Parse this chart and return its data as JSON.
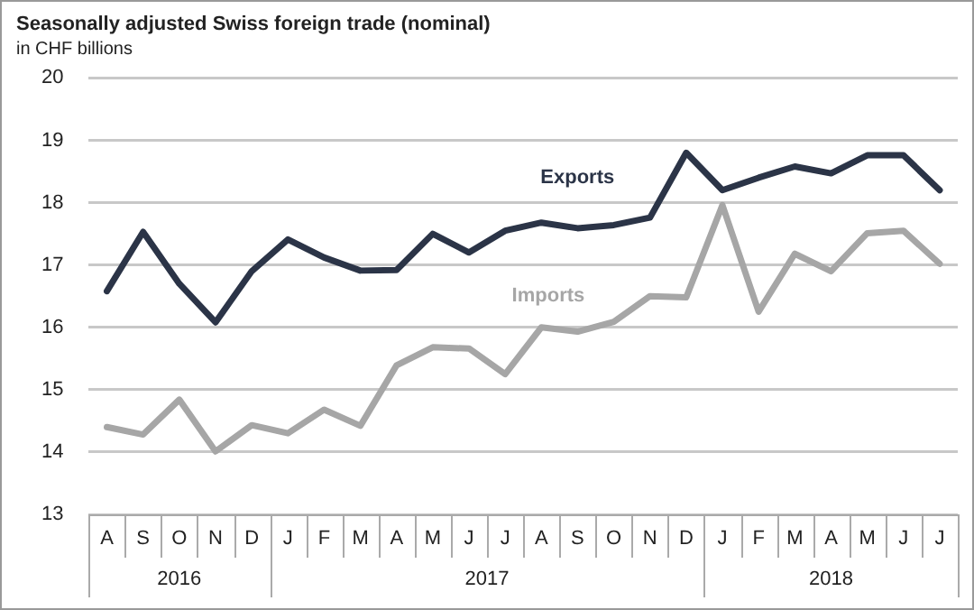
{
  "chart_data": {
    "type": "line",
    "title": "Seasonally adjusted Swiss foreign trade (nominal)",
    "subtitle": "in CHF billions",
    "categories": [
      "A",
      "S",
      "O",
      "N",
      "D",
      "J",
      "F",
      "M",
      "A",
      "M",
      "J",
      "J",
      "A",
      "S",
      "O",
      "N",
      "D",
      "J",
      "F",
      "M",
      "A",
      "M",
      "J",
      "J"
    ],
    "series": [
      {
        "name": "Exports",
        "color": "#2b3447",
        "values": [
          16.58,
          17.53,
          16.7,
          16.08,
          16.9,
          17.41,
          17.12,
          16.91,
          16.92,
          17.5,
          17.2,
          17.55,
          17.68,
          17.59,
          17.64,
          17.76,
          18.8,
          18.2,
          18.4,
          18.58,
          18.47,
          18.76,
          18.76,
          18.2
        ]
      },
      {
        "name": "Imports",
        "color": "#a6a6a6",
        "values": [
          14.4,
          14.28,
          14.84,
          14.01,
          14.43,
          14.3,
          14.68,
          14.42,
          15.39,
          15.68,
          15.66,
          15.25,
          16.0,
          15.93,
          16.09,
          16.5,
          16.48,
          17.96,
          16.25,
          17.18,
          16.9,
          17.51,
          17.55,
          17.02
        ]
      }
    ],
    "annotations": [
      "2016",
      "2017",
      "2018"
    ],
    "ylim": [
      13,
      20
    ],
    "yticks": [
      13,
      14,
      15,
      16,
      17,
      18,
      19,
      20
    ],
    "grid": "y",
    "legend": false,
    "marker": "none",
    "line_style": "solid"
  }
}
